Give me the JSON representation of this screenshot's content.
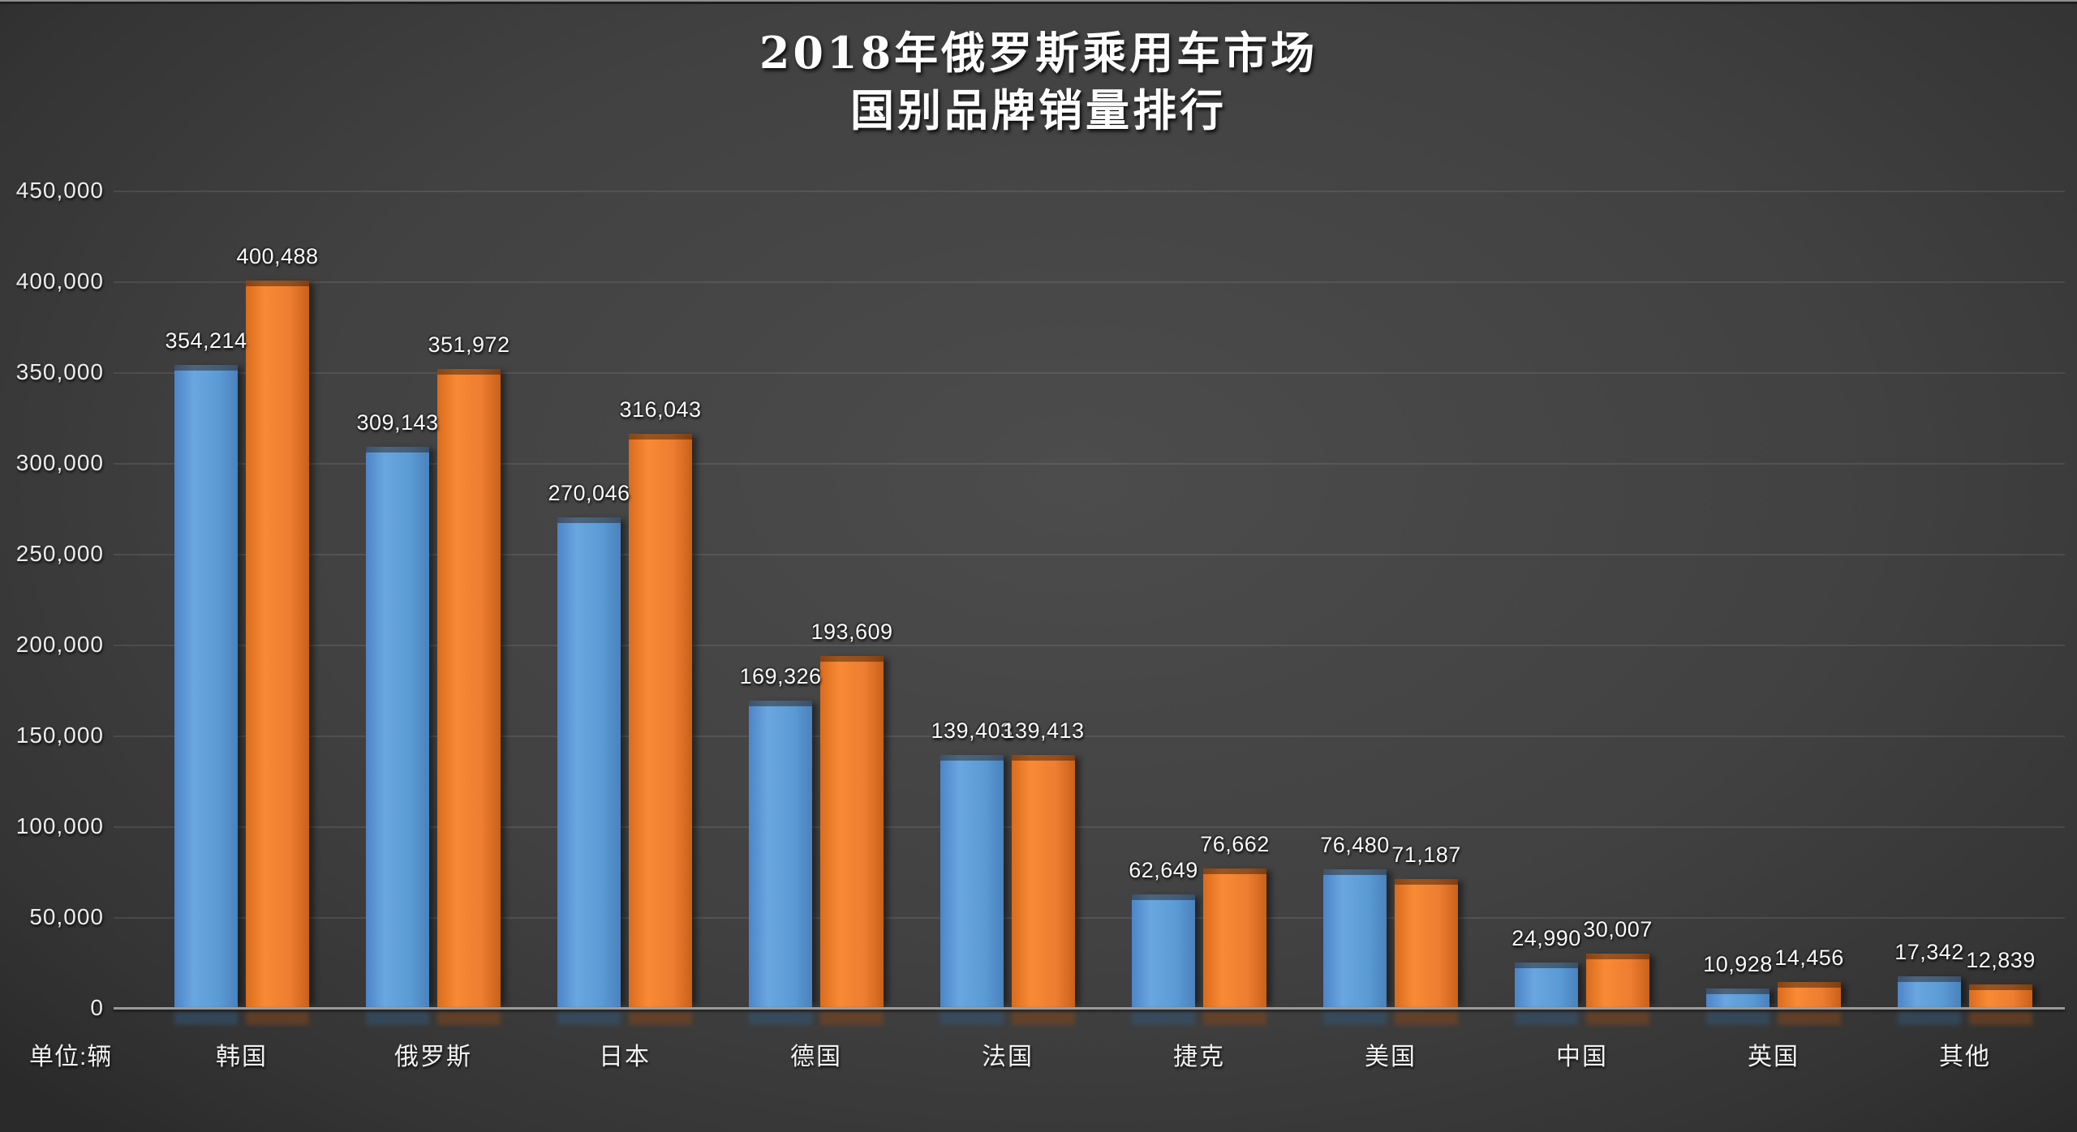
{
  "page": {
    "top_strip_color": "#8f8f8f",
    "background_color": "#414141"
  },
  "chart_data": {
    "type": "bar",
    "title_line1": "2018年俄罗斯乘用车市场",
    "title_line2": "国别品牌销量排行",
    "unit_label": "单位:辆",
    "categories": [
      "韩国",
      "俄罗斯",
      "日本",
      "德国",
      "法国",
      "捷克",
      "美国",
      "中国",
      "英国",
      "其他"
    ],
    "series": [
      {
        "name": "series-blue",
        "color": "#5B9BD5",
        "values": [
          354214,
          309143,
          270046,
          169326,
          139403,
          62649,
          76480,
          24990,
          10928,
          17342
        ]
      },
      {
        "name": "series-orange",
        "color": "#ED7D31",
        "values": [
          400488,
          351972,
          316043,
          193609,
          139413,
          76662,
          71187,
          30007,
          14456,
          12839
        ]
      }
    ],
    "ylim": [
      0,
      450000
    ],
    "ytick_step": 50000,
    "ytick_labels": [
      "450,000",
      "400,000",
      "350,000",
      "300,000",
      "250,000",
      "200,000",
      "150,000",
      "100,000",
      "50,000",
      "0"
    ],
    "grid": true,
    "legend_position": "none",
    "data_labels_shown": true
  }
}
